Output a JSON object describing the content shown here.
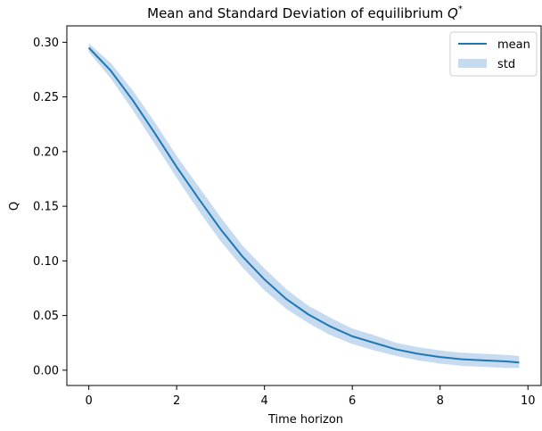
{
  "chart_data": {
    "type": "line",
    "title_text": "Mean and Standard Deviation of equilibrium ",
    "title_symbol": "Q",
    "title_superscript": "*",
    "xlabel": "Time horizon",
    "ylabel": "Q",
    "xlim": [
      -0.5,
      10.3
    ],
    "ylim": [
      -0.014,
      0.315
    ],
    "x_ticks": [
      0,
      2,
      4,
      6,
      8,
      10
    ],
    "x_tick_labels": [
      "0",
      "2",
      "4",
      "6",
      "8",
      "10"
    ],
    "y_ticks": [
      0.0,
      0.05,
      0.1,
      0.15,
      0.2,
      0.25,
      0.3
    ],
    "y_tick_labels": [
      "0.00",
      "0.05",
      "0.10",
      "0.15",
      "0.20",
      "0.25",
      "0.30"
    ],
    "grid": false,
    "legend_position": "top-right",
    "colors": {
      "mean": "#1f77b4",
      "band": "#c6dbef"
    },
    "series": [
      {
        "name": "mean",
        "kind": "line",
        "x": [
          0,
          0.5,
          1,
          1.5,
          2,
          2.5,
          3,
          3.5,
          4,
          4.5,
          5,
          5.5,
          6,
          6.5,
          7,
          7.5,
          8,
          8.5,
          9,
          9.5,
          9.8
        ],
        "y": [
          0.295,
          0.274,
          0.247,
          0.217,
          0.186,
          0.157,
          0.129,
          0.104,
          0.083,
          0.065,
          0.051,
          0.04,
          0.031,
          0.025,
          0.019,
          0.015,
          0.012,
          0.01,
          0.009,
          0.008,
          0.007
        ]
      },
      {
        "name": "std",
        "kind": "band",
        "x": [
          0,
          0.5,
          1,
          1.5,
          2,
          2.5,
          3,
          3.5,
          4,
          4.5,
          5,
          5.5,
          6,
          6.5,
          7,
          7.5,
          8,
          8.5,
          9,
          9.5,
          9.8
        ],
        "lower": [
          0.291,
          0.267,
          0.238,
          0.207,
          0.176,
          0.146,
          0.118,
          0.094,
          0.073,
          0.056,
          0.043,
          0.032,
          0.024,
          0.018,
          0.013,
          0.009,
          0.006,
          0.004,
          0.003,
          0.002,
          0.002
        ],
        "upper": [
          0.299,
          0.281,
          0.256,
          0.227,
          0.196,
          0.168,
          0.14,
          0.114,
          0.093,
          0.074,
          0.059,
          0.048,
          0.038,
          0.032,
          0.025,
          0.021,
          0.018,
          0.016,
          0.015,
          0.014,
          0.013
        ]
      }
    ]
  }
}
